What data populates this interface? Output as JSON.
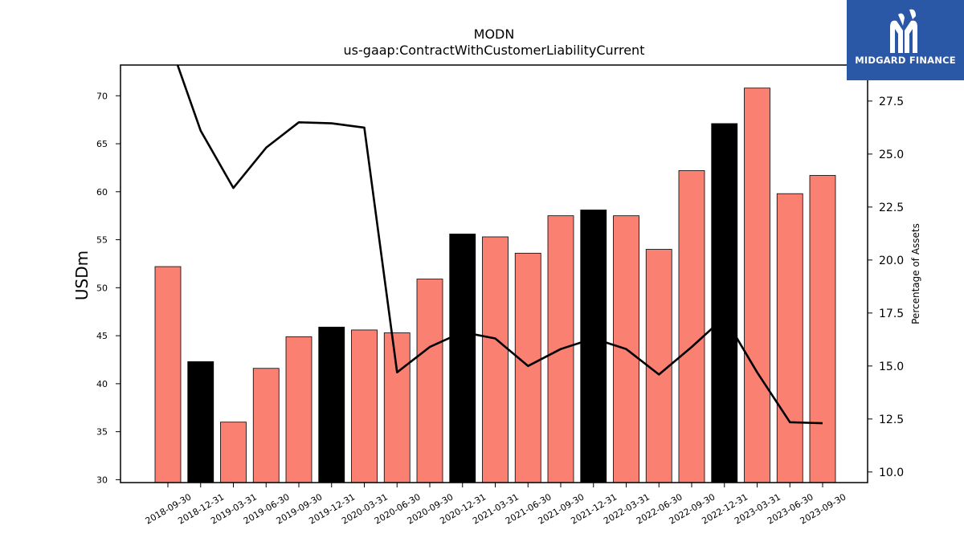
{
  "logo": {
    "text": "MIDGARD FINANCE"
  },
  "colors": {
    "bar": "#fa8072",
    "bar_highlight": "#000000",
    "line": "#000000",
    "axis": "#000000"
  },
  "chart_data": {
    "type": "bar",
    "title": "MODN",
    "subtitle": "us-gaap:ContractWithCustomerLiabilityCurrent",
    "xlabel": "",
    "ylabel": "USDm",
    "y2label": "Percentage of Assets",
    "ylim": [
      29.7,
      73.2
    ],
    "y2lim": [
      9.5,
      29.2
    ],
    "yticks": [
      30,
      35,
      40,
      45,
      50,
      55,
      60,
      65,
      70
    ],
    "y2ticks": [
      "10.0",
      "12.5",
      "15.0",
      "17.5",
      "20.0",
      "22.5",
      "25.0",
      "27.5"
    ],
    "grid": false,
    "categories": [
      "2018-09-30",
      "2018-12-31",
      "2019-03-31",
      "2019-06-30",
      "2019-09-30",
      "2019-12-31",
      "2020-03-31",
      "2020-06-30",
      "2020-09-30",
      "2020-12-31",
      "2021-03-31",
      "2021-06-30",
      "2021-09-30",
      "2021-12-31",
      "2022-03-31",
      "2022-06-30",
      "2022-09-30",
      "2022-12-31",
      "2023-03-31",
      "2023-06-30",
      "2023-09-30"
    ],
    "series": [
      {
        "type": "bar",
        "axis": "left",
        "values": [
          52.2,
          42.3,
          36.0,
          41.6,
          44.9,
          45.9,
          45.6,
          45.3,
          50.9,
          55.6,
          55.3,
          53.6,
          57.5,
          58.1,
          57.5,
          54.0,
          62.2,
          67.1,
          70.8,
          59.8,
          61.7
        ],
        "highlight": [
          false,
          true,
          false,
          false,
          false,
          true,
          false,
          false,
          false,
          true,
          false,
          false,
          false,
          true,
          false,
          false,
          false,
          true,
          false,
          false,
          false
        ]
      },
      {
        "type": "line",
        "axis": "right",
        "values": [
          30.5,
          26.1,
          23.4,
          25.3,
          26.5,
          26.45,
          26.25,
          14.7,
          15.9,
          16.6,
          16.3,
          15.0,
          15.8,
          16.3,
          15.8,
          14.6,
          15.9,
          17.3,
          14.7,
          12.35,
          12.3
        ]
      }
    ]
  }
}
